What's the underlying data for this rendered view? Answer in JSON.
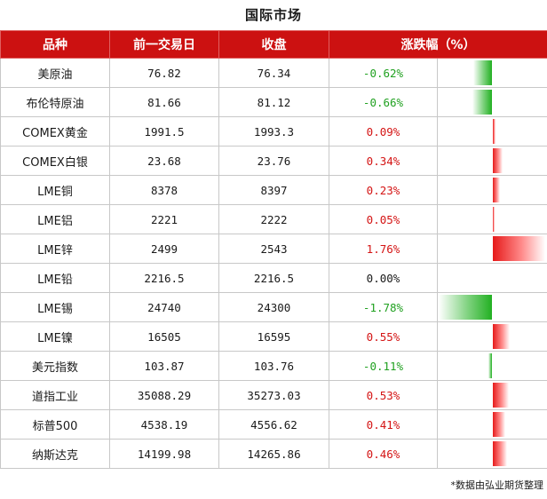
{
  "title": "国际市场",
  "headers": {
    "name": "品种",
    "prev": "前一交易日",
    "close": "收盘",
    "change": "涨跌幅（%）"
  },
  "rows": [
    {
      "name": "美原油",
      "prev": "76.82",
      "close": "76.34",
      "change": "-0.62%",
      "pct": -0.62
    },
    {
      "name": "布伦特原油",
      "prev": "81.66",
      "close": "81.12",
      "change": "-0.66%",
      "pct": -0.66
    },
    {
      "name": "COMEX黄金",
      "prev": "1991.5",
      "close": "1993.3",
      "change": "0.09%",
      "pct": 0.09
    },
    {
      "name": "COMEX白银",
      "prev": "23.68",
      "close": "23.76",
      "change": "0.34%",
      "pct": 0.34
    },
    {
      "name": "LME铜",
      "prev": "8378",
      "close": "8397",
      "change": "0.23%",
      "pct": 0.23
    },
    {
      "name": "LME铝",
      "prev": "2221",
      "close": "2222",
      "change": "0.05%",
      "pct": 0.05
    },
    {
      "name": "LME锌",
      "prev": "2499",
      "close": "2543",
      "change": "1.76%",
      "pct": 1.76
    },
    {
      "name": "LME铅",
      "prev": "2216.5",
      "close": "2216.5",
      "change": "0.00%",
      "pct": 0.0
    },
    {
      "name": "LME锡",
      "prev": "24740",
      "close": "24300",
      "change": "-1.78%",
      "pct": -1.78
    },
    {
      "name": "LME镍",
      "prev": "16505",
      "close": "16595",
      "change": "0.55%",
      "pct": 0.55
    },
    {
      "name": "美元指数",
      "prev": "103.87",
      "close": "103.76",
      "change": "-0.11%",
      "pct": -0.11
    },
    {
      "name": "道指工业",
      "prev": "35088.29",
      "close": "35273.03",
      "change": "0.53%",
      "pct": 0.53
    },
    {
      "name": "标普500",
      "prev": "4538.19",
      "close": "4556.62",
      "change": "0.41%",
      "pct": 0.41
    },
    {
      "name": "纳斯达克",
      "prev": "14199.98",
      "close": "14265.86",
      "change": "0.46%",
      "pct": 0.46
    }
  ],
  "colors": {
    "header_bg": "#cc1111",
    "up": "#d41414",
    "down": "#21a121"
  },
  "source_note": "*数据由弘业期货整理"
}
